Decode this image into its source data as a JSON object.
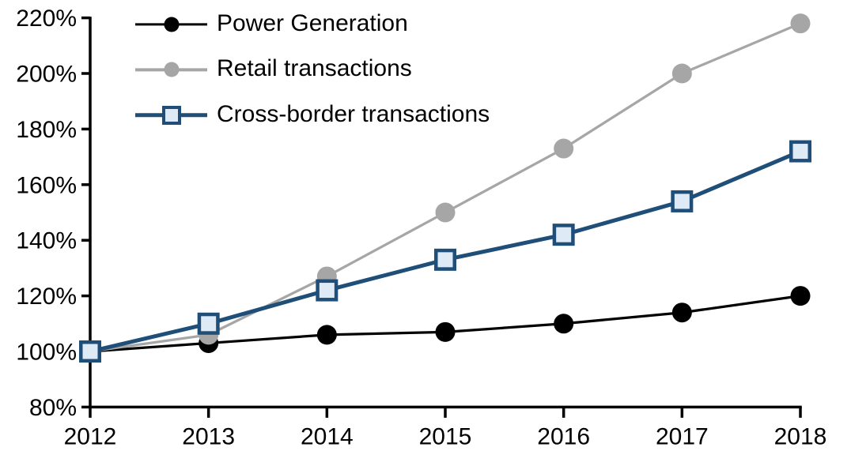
{
  "chart_data": {
    "type": "line",
    "title": "",
    "categories": [
      "2012",
      "2013",
      "2014",
      "2015",
      "2016",
      "2017",
      "2018"
    ],
    "series": [
      {
        "name": "Power Generation",
        "values": [
          100,
          103,
          106,
          107,
          110,
          114,
          120
        ],
        "color": "#000000",
        "marker": "circle",
        "marker_fill": "#000000"
      },
      {
        "name": "Retail transactions",
        "values": [
          100,
          106,
          127,
          150,
          173,
          200,
          218
        ],
        "color": "#a6a6a6",
        "marker": "circle",
        "marker_fill": "#a6a6a6"
      },
      {
        "name": "Cross-border transactions",
        "values": [
          100,
          110,
          122,
          133,
          142,
          154,
          172
        ],
        "color": "#1f4e79",
        "marker": "square",
        "marker_fill": "#deebf7"
      }
    ],
    "unit": "%",
    "ylim": [
      80,
      220
    ],
    "ytick_values": [
      80,
      100,
      120,
      140,
      160,
      180,
      200,
      220
    ],
    "ytick_labels": [
      "80%",
      "100%",
      "120%",
      "140%",
      "160%",
      "180%",
      "200%",
      "220%"
    ],
    "xtick_labels": [
      "2012",
      "2013",
      "2014",
      "2015",
      "2016",
      "2017",
      "2018"
    ],
    "grid": false,
    "legend_position": "top-left",
    "axis_color": "#000000",
    "background_color": "#ffffff"
  }
}
